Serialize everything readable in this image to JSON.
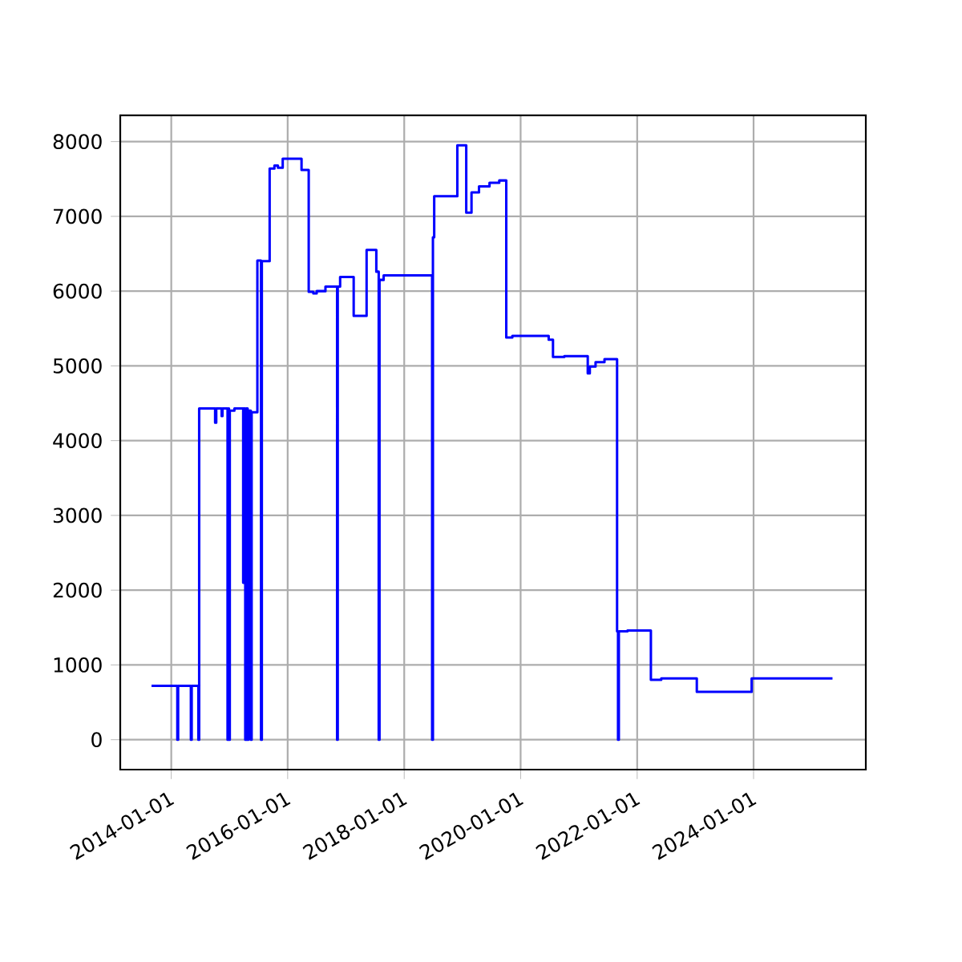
{
  "chart_data": {
    "type": "step",
    "color": "#0000ff",
    "grid": true,
    "x": [
      "2013-08-30",
      "2014-02-08",
      "2014-02-13",
      "2014-05-04",
      "2014-05-09",
      "2014-06-20",
      "2014-06-25",
      "2014-10-03",
      "2014-10-10",
      "2014-11-13",
      "2014-11-18",
      "2014-12-20",
      "2014-12-25",
      "2014-12-29",
      "2015-01-03",
      "2015-02-01",
      "2015-03-28",
      "2015-04-03",
      "2015-04-10",
      "2015-04-15",
      "2015-04-25",
      "2015-04-30",
      "2015-05-15",
      "2015-05-20",
      "2015-06-25",
      "2015-07-18",
      "2015-07-23",
      "2015-09-10",
      "2015-10-10",
      "2015-11-01",
      "2015-12-01",
      "2016-03-28",
      "2016-05-12",
      "2016-06-10",
      "2016-07-01",
      "2016-08-25",
      "2016-11-06",
      "2016-11-10",
      "2016-11-25",
      "2017-02-18",
      "2017-05-10",
      "2017-07-10",
      "2017-07-25",
      "2017-07-30",
      "2017-08-25",
      "2018-06-25",
      "2018-06-30",
      "2018-07-08",
      "2018-11-30",
      "2019-01-25",
      "2019-02-27",
      "2019-04-15",
      "2019-06-20",
      "2019-08-20",
      "2019-10-03",
      "2019-11-10",
      "2020-06-25",
      "2020-07-22",
      "2020-10-01",
      "2021-02-25",
      "2021-03-10",
      "2021-04-15",
      "2021-06-10",
      "2021-08-28",
      "2021-09-03",
      "2021-09-08",
      "2021-11-01",
      "2022-03-28",
      "2022-06-01",
      "2023-01-10",
      "2023-12-20",
      "2025-05-10"
    ],
    "values": [
      720,
      0,
      720,
      0,
      720,
      0,
      4430,
      4240,
      4430,
      4330,
      4430,
      0,
      4430,
      0,
      4400,
      4430,
      2100,
      4430,
      0,
      4430,
      0,
      4400,
      0,
      4380,
      6410,
      0,
      6400,
      7640,
      7680,
      7650,
      7770,
      7620,
      5990,
      5970,
      6000,
      6060,
      0,
      6060,
      6190,
      5670,
      6550,
      6260,
      0,
      6150,
      6210,
      0,
      6720,
      7270,
      7950,
      7050,
      7320,
      7400,
      7450,
      7480,
      5380,
      5400,
      5350,
      5120,
      5130,
      4900,
      4990,
      5050,
      5090,
      1450,
      0,
      1450,
      1460,
      800,
      820,
      640,
      820,
      820
    ],
    "xlim": [
      "2013-02-15",
      "2025-12-05"
    ],
    "ylim": [
      -400,
      8350
    ],
    "xticks": [
      "2014-01-01",
      "2016-01-01",
      "2018-01-01",
      "2020-01-01",
      "2022-01-01",
      "2024-01-01"
    ],
    "yticks": [
      0,
      1000,
      2000,
      3000,
      4000,
      5000,
      6000,
      7000,
      8000
    ]
  }
}
